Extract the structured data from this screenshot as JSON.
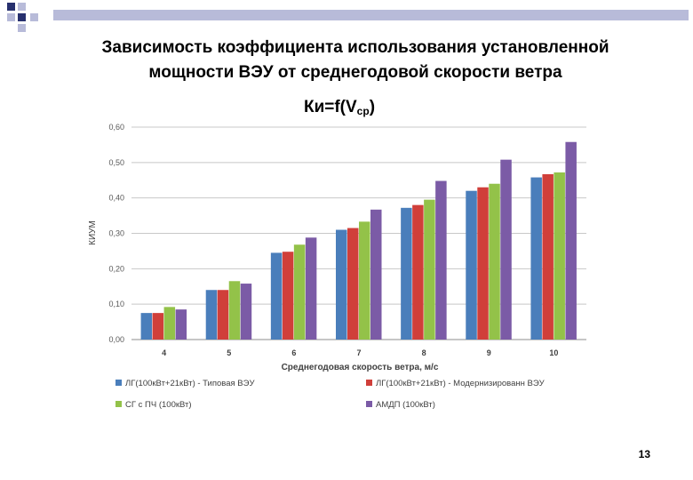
{
  "slide": {
    "title_line1": "Зависимость коэффициента использования установленной",
    "title_line2": "мощности ВЭУ от среднегодовой скорости ветра",
    "page_number": "13"
  },
  "colors": {
    "decor_blue": "#27306e",
    "decor_lavender": "#b8bbd9",
    "grid": "#c8c8c8",
    "axis_text": "#595959"
  },
  "chart_data": {
    "type": "bar",
    "title": "Ки=f(Vср)",
    "title_main": "Ки=f(V",
    "title_sub": "ср",
    "title_close": ")",
    "xlabel": "Среднегодовая скорость ветра, м/с",
    "ylabel": "КИУМ",
    "ylim": [
      0,
      0.6
    ],
    "yticks": [
      "0,00",
      "0,10",
      "0,20",
      "0,30",
      "0,40",
      "0,50",
      "0,60"
    ],
    "categories": [
      "4",
      "5",
      "6",
      "7",
      "8",
      "9",
      "10"
    ],
    "grid": true,
    "legend_position": "bottom",
    "series": [
      {
        "name": "ЛГ(100кВт+21кВт) - Типовая ВЭУ",
        "color": "#4a7ebb",
        "values": [
          0.075,
          0.14,
          0.245,
          0.31,
          0.372,
          0.42,
          0.458
        ]
      },
      {
        "name": "ЛГ(100кВт+21кВт) - Модернизированн ВЭУ",
        "color": "#d03f3a",
        "values": [
          0.075,
          0.14,
          0.248,
          0.315,
          0.38,
          0.43,
          0.467
        ]
      },
      {
        "name": "СГ с ПЧ (100кВт)",
        "color": "#93c249",
        "values": [
          0.092,
          0.165,
          0.268,
          0.333,
          0.395,
          0.44,
          0.472
        ]
      },
      {
        "name": "АМДП (100кВт)",
        "color": "#7b5ba6",
        "values": [
          0.085,
          0.158,
          0.288,
          0.367,
          0.448,
          0.508,
          0.558
        ]
      }
    ]
  }
}
